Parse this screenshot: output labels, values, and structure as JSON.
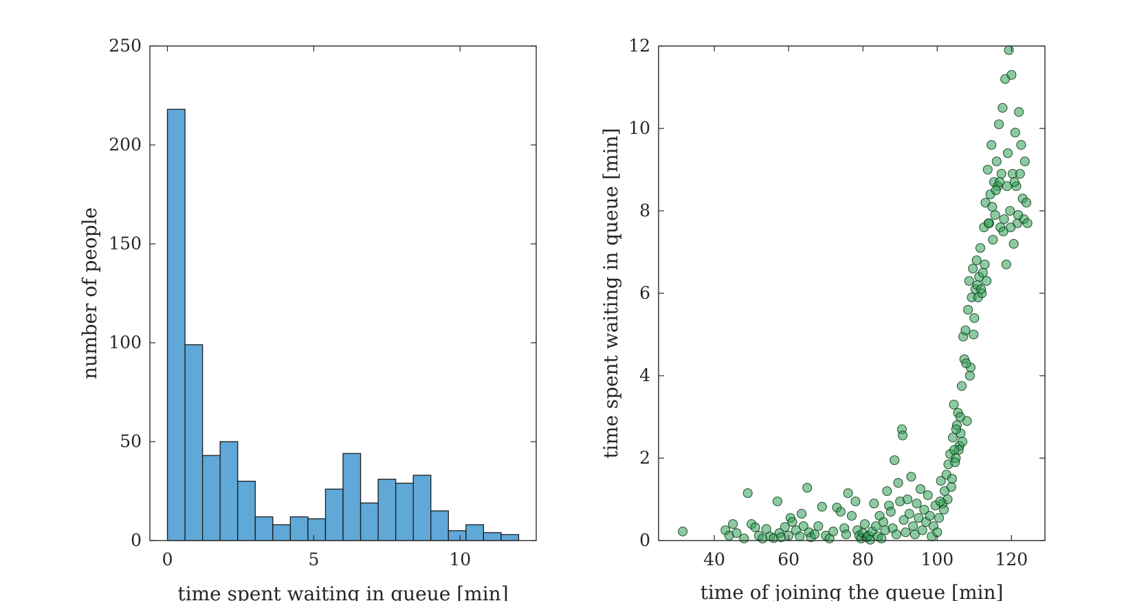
{
  "chart_data": [
    {
      "type": "bar",
      "title": "",
      "xlabel": "time spent waiting in queue [min]",
      "ylabel": "number of people",
      "xlim": [
        -0.6,
        12.6
      ],
      "ylim": [
        0,
        250
      ],
      "xticks": [
        0,
        5,
        10
      ],
      "yticks": [
        0,
        50,
        100,
        150,
        200,
        250
      ],
      "grid": false,
      "bin_width": 0.6,
      "bin_edges": [
        0,
        0.6,
        1.2,
        1.8,
        2.4,
        3.0,
        3.6,
        4.2,
        4.8,
        5.4,
        6.0,
        6.6,
        7.2,
        7.8,
        8.4,
        9.0,
        9.6,
        10.2,
        10.8,
        11.4,
        12.0
      ],
      "values": [
        218,
        99,
        43,
        50,
        30,
        12,
        8,
        12,
        11,
        26,
        44,
        19,
        31,
        29,
        33,
        15,
        5,
        8,
        4,
        3
      ],
      "color": "#5fa8d8"
    },
    {
      "type": "scatter",
      "title": "",
      "xlabel": "time of joining the queue [min]",
      "ylabel": "time spent waiting in queue [min]",
      "xlim": [
        25,
        129
      ],
      "ylim": [
        0,
        12
      ],
      "xticks": [
        40,
        60,
        80,
        100,
        120
      ],
      "yticks": [
        0,
        2,
        4,
        6,
        8,
        10,
        12
      ],
      "grid": false,
      "color": "#2f9e55",
      "points": [
        [
          31.5,
          0.22
        ],
        [
          43,
          0.25
        ],
        [
          44,
          0.12
        ],
        [
          45,
          0.4
        ],
        [
          46,
          0.18
        ],
        [
          48,
          0.05
        ],
        [
          49,
          1.15
        ],
        [
          50,
          0.4
        ],
        [
          51,
          0.32
        ],
        [
          52,
          0.12
        ],
        [
          53,
          0.05
        ],
        [
          54,
          0.28
        ],
        [
          55,
          0.1
        ],
        [
          56,
          0.06
        ],
        [
          57,
          0.95
        ],
        [
          57.5,
          0.18
        ],
        [
          58,
          0.08
        ],
        [
          59,
          0.33
        ],
        [
          60,
          0.12
        ],
        [
          60.5,
          0.55
        ],
        [
          61,
          0.45
        ],
        [
          62,
          0.25
        ],
        [
          63,
          0.1
        ],
        [
          63.5,
          0.65
        ],
        [
          64,
          0.35
        ],
        [
          65,
          1.28
        ],
        [
          65.5,
          0.2
        ],
        [
          66,
          0.08
        ],
        [
          67,
          0.15
        ],
        [
          68,
          0.35
        ],
        [
          69,
          0.82
        ],
        [
          70,
          0.12
        ],
        [
          71,
          0.05
        ],
        [
          72,
          0.22
        ],
        [
          73,
          0.8
        ],
        [
          74,
          0.7
        ],
        [
          75,
          0.3
        ],
        [
          75.5,
          0.15
        ],
        [
          76,
          1.15
        ],
        [
          77,
          0.6
        ],
        [
          78,
          0.95
        ],
        [
          78.5,
          0.25
        ],
        [
          79,
          0.12
        ],
        [
          79.5,
          0.05
        ],
        [
          80,
          0.18
        ],
        [
          80.5,
          0.4
        ],
        [
          81,
          0.08
        ],
        [
          81.5,
          0.12
        ],
        [
          82,
          0.02
        ],
        [
          82.5,
          0.22
        ],
        [
          83,
          0.9
        ],
        [
          83.5,
          0.35
        ],
        [
          84,
          0.1
        ],
        [
          84.5,
          0.6
        ],
        [
          85,
          0.05
        ],
        [
          85.5,
          0.45
        ],
        [
          86,
          0.25
        ],
        [
          86.5,
          1.2
        ],
        [
          87,
          0.85
        ],
        [
          87.5,
          0.7
        ],
        [
          88,
          0.3
        ],
        [
          88.5,
          1.95
        ],
        [
          89,
          0.15
        ],
        [
          89.5,
          1.4
        ],
        [
          90,
          0.95
        ],
        [
          90.5,
          2.7
        ],
        [
          90.7,
          2.55
        ],
        [
          91,
          0.5
        ],
        [
          91.5,
          0.2
        ],
        [
          92,
          1.0
        ],
        [
          92.5,
          0.65
        ],
        [
          93,
          1.55
        ],
        [
          93.5,
          0.35
        ],
        [
          94,
          0.15
        ],
        [
          94.5,
          0.9
        ],
        [
          95,
          0.55
        ],
        [
          95.5,
          1.25
        ],
        [
          96,
          0.25
        ],
        [
          96.5,
          0.75
        ],
        [
          97,
          0.45
        ],
        [
          97.5,
          1.1
        ],
        [
          98,
          0.6
        ],
        [
          98.5,
          0.1
        ],
        [
          99,
          0.35
        ],
        [
          99.5,
          0.85
        ],
        [
          100,
          0.2
        ],
        [
          100.5,
          0.55
        ],
        [
          101,
          1.45
        ],
        [
          101.5,
          0.9
        ],
        [
          102,
          1.2
        ],
        [
          102.5,
          1.6
        ],
        [
          103,
          1.85
        ],
        [
          103.5,
          2.1
        ],
        [
          104,
          1.5
        ],
        [
          104.2,
          2.5
        ],
        [
          104.5,
          3.3
        ],
        [
          105,
          2.0
        ],
        [
          105.3,
          2.8
        ],
        [
          105.6,
          3.1
        ],
        [
          106,
          2.3
        ],
        [
          106.3,
          2.6
        ],
        [
          106.6,
          3.75
        ],
        [
          107,
          4.95
        ],
        [
          107.3,
          4.4
        ],
        [
          107.6,
          5.1
        ],
        [
          108,
          2.9
        ],
        [
          108.3,
          5.6
        ],
        [
          108.6,
          6.3
        ],
        [
          109,
          4.2
        ],
        [
          109.3,
          5.9
        ],
        [
          109.6,
          6.6
        ],
        [
          110,
          5.4
        ],
        [
          110.3,
          6.1
        ],
        [
          110.6,
          6.8
        ],
        [
          111,
          5.9
        ],
        [
          111.3,
          6.4
        ],
        [
          111.6,
          7.1
        ],
        [
          112,
          6.0
        ],
        [
          112.3,
          6.5
        ],
        [
          112.6,
          7.6
        ],
        [
          113,
          8.2
        ],
        [
          113.3,
          6.3
        ],
        [
          113.6,
          9.0
        ],
        [
          114,
          7.7
        ],
        [
          114.3,
          8.4
        ],
        [
          114.6,
          9.6
        ],
        [
          115,
          7.3
        ],
        [
          115.3,
          8.7
        ],
        [
          115.6,
          7.9
        ],
        [
          116,
          9.2
        ],
        [
          116.3,
          8.6
        ],
        [
          116.6,
          10.1
        ],
        [
          117,
          7.6
        ],
        [
          117.3,
          8.9
        ],
        [
          117.6,
          10.5
        ],
        [
          118,
          7.8
        ],
        [
          118.3,
          11.2
        ],
        [
          118.6,
          6.7
        ],
        [
          119,
          9.4
        ],
        [
          119.3,
          11.9
        ],
        [
          119.6,
          8.0
        ],
        [
          120,
          11.3
        ],
        [
          120.3,
          8.9
        ],
        [
          120.6,
          7.2
        ],
        [
          121,
          9.9
        ],
        [
          121.3,
          8.6
        ],
        [
          121.6,
          7.7
        ],
        [
          122,
          10.4
        ],
        [
          122.3,
          8.9
        ],
        [
          122.6,
          9.6
        ],
        [
          123,
          8.3
        ],
        [
          123.3,
          7.8
        ],
        [
          123.6,
          9.2
        ],
        [
          124,
          8.2
        ],
        [
          124.3,
          7.7
        ],
        [
          104.8,
          1.9
        ],
        [
          105.8,
          2.2
        ],
        [
          106.8,
          2.4
        ],
        [
          103.8,
          1.3
        ],
        [
          102.8,
          1.0
        ],
        [
          101.8,
          0.75
        ],
        [
          100.8,
          0.95
        ],
        [
          109.8,
          5.0
        ],
        [
          110.8,
          6.2
        ],
        [
          111.8,
          6.1
        ],
        [
          112.8,
          6.7
        ],
        [
          113.8,
          7.7
        ],
        [
          114.8,
          8.1
        ],
        [
          115.8,
          8.5
        ],
        [
          116.8,
          8.7
        ],
        [
          117.8,
          7.5
        ],
        [
          118.8,
          8.6
        ],
        [
          119.8,
          7.6
        ],
        [
          120.8,
          8.7
        ],
        [
          121.8,
          7.9
        ],
        [
          107.8,
          4.3
        ],
        [
          108.8,
          4.0
        ],
        [
          106.2,
          3.0
        ],
        [
          105.1,
          2.7
        ],
        [
          104.6,
          2.2
        ]
      ]
    }
  ]
}
